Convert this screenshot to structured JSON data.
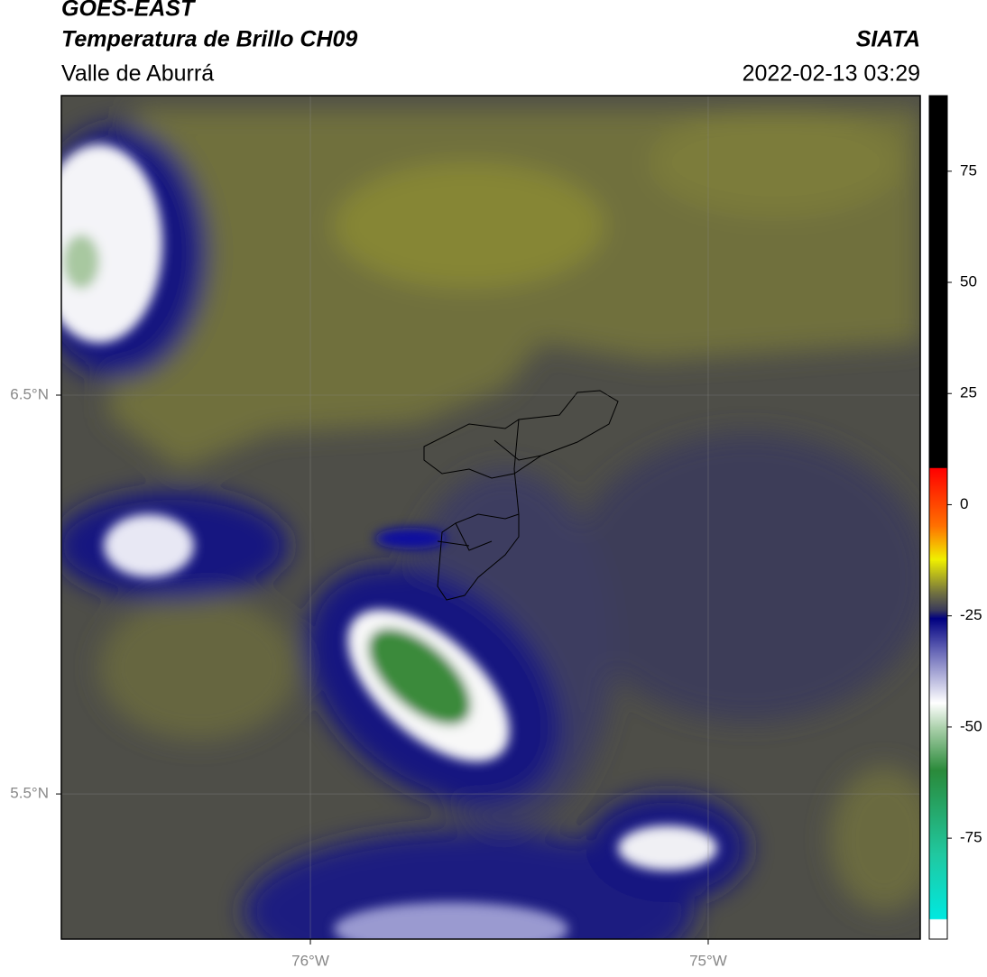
{
  "header": {
    "title": "GOES-EAST",
    "subtitle": "Temperatura de Brillo CH09",
    "source": "SIATA",
    "region": "Valle de Aburrá",
    "datetime": "2022-02-13 03:29"
  },
  "map": {
    "lon_range": [
      -76.626,
      -74.467
    ],
    "lat_range": [
      5.136,
      7.251
    ],
    "lon_ticks": [
      {
        "value": -76,
        "label": "76°W"
      },
      {
        "value": -75,
        "label": "75°W"
      }
    ],
    "lat_ticks": [
      {
        "value": 6.5,
        "label": "6.5°N"
      },
      {
        "value": 5.5,
        "label": "5.5°N"
      }
    ]
  },
  "colorbar": {
    "range": [
      -97.7,
      92
    ],
    "ticks": [
      75,
      50,
      25,
      0,
      -25,
      -50,
      -75
    ]
  }
}
